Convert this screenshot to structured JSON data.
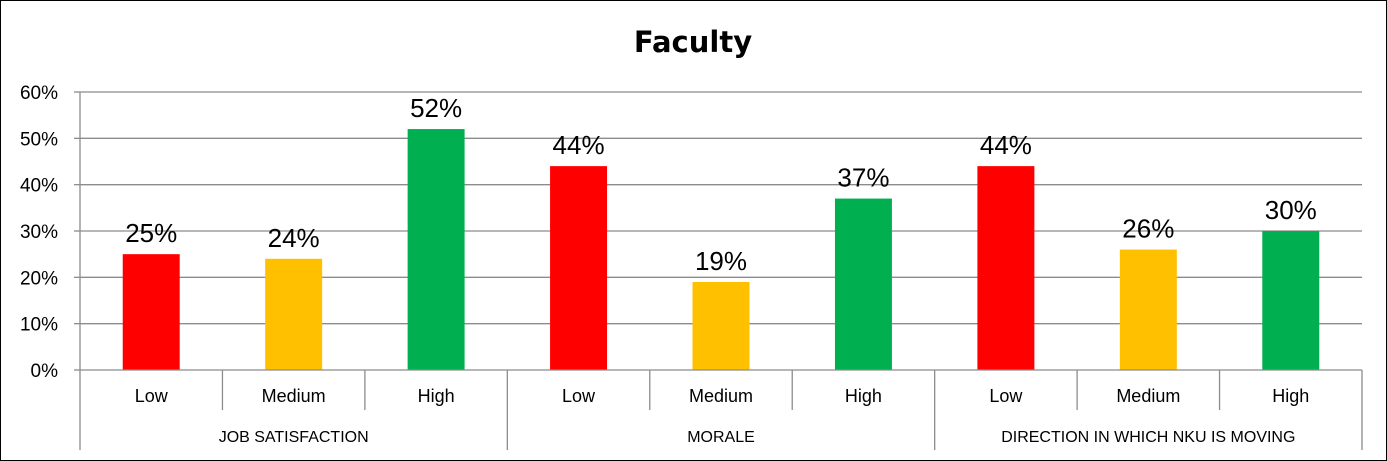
{
  "chart_data": {
    "type": "bar",
    "title": "Faculty",
    "ylim": [
      0,
      60
    ],
    "yticks": [
      "0%",
      "10%",
      "20%",
      "30%",
      "40%",
      "50%",
      "60%"
    ],
    "grid": true,
    "legend": "none",
    "groups": [
      {
        "name": "JOB SATISFACTION",
        "categories": [
          "Low",
          "Medium",
          "High"
        ],
        "values": [
          25,
          24,
          52
        ],
        "labels": [
          "25%",
          "24%",
          "52%"
        ]
      },
      {
        "name": "MORALE",
        "categories": [
          "Low",
          "Medium",
          "High"
        ],
        "values": [
          44,
          19,
          37
        ],
        "labels": [
          "44%",
          "19%",
          "37%"
        ]
      },
      {
        "name": "DIRECTION IN WHICH NKU IS MOVING",
        "categories": [
          "Low",
          "Medium",
          "High"
        ],
        "values": [
          44,
          26,
          30
        ],
        "labels": [
          "44%",
          "26%",
          "30%"
        ]
      }
    ],
    "colors": {
      "Low": "#ff0000",
      "Medium": "#ffc000",
      "High": "#00b050"
    },
    "gridline_color": "#8c8c8c",
    "axis_color": "#8c8c8c"
  }
}
